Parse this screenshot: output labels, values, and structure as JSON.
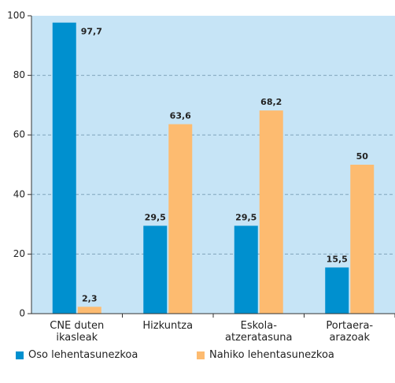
{
  "chart_data": {
    "type": "bar",
    "categories": [
      "CNE duten ikasleak",
      "Hizkuntza",
      "Eskola-atzeratasuna",
      "Portaera-arazoak"
    ],
    "series": [
      {
        "name": "Oso lehentasunezkoa",
        "color": "#0090cf",
        "values": [
          97.7,
          29.5,
          29.5,
          15.5
        ],
        "value_labels": [
          "97,7",
          "29,5",
          "29,5",
          "15,5"
        ]
      },
      {
        "name": "Nahiko lehentasunezkoa",
        "color": "#fdbb70",
        "values": [
          2.3,
          63.6,
          68.2,
          50
        ],
        "value_labels": [
          "2,3",
          "63,6",
          "68,2",
          "50"
        ]
      }
    ],
    "ylim": [
      0,
      100
    ],
    "yticks": [
      0,
      20,
      40,
      60,
      80,
      100
    ],
    "grid": true,
    "background": "#c6e4f6"
  }
}
